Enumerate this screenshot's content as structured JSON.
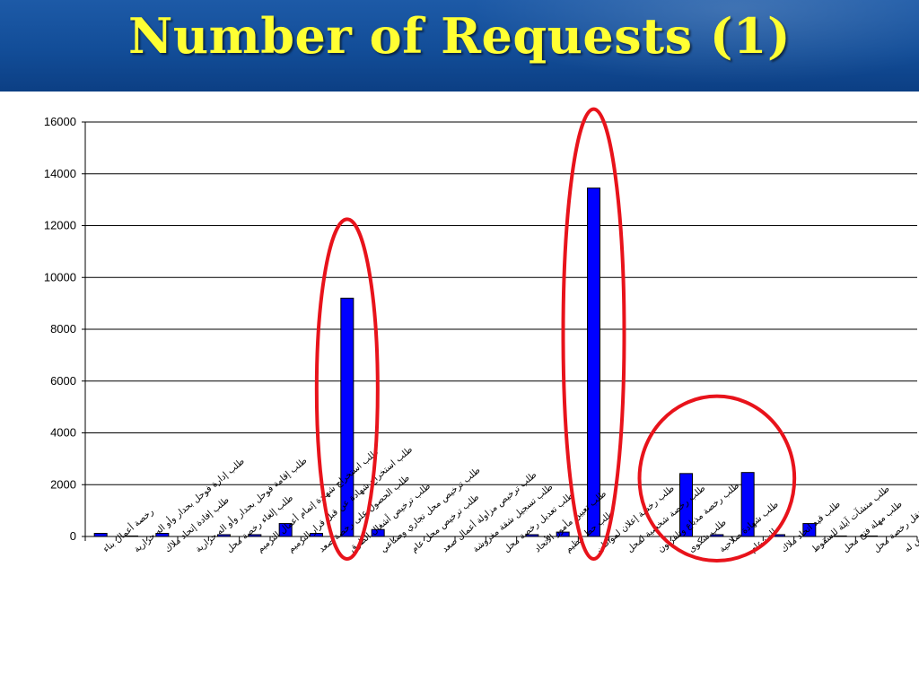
{
  "header": {
    "title": "Number of Requests (1)"
  },
  "colors": {
    "bar": "#0000ff",
    "bar_outline": "#000000",
    "highlight": "#e8131b",
    "title": "#ffff33",
    "header_bg": "#134f9c"
  },
  "chart_data": {
    "type": "bar",
    "title": "",
    "xlabel": "",
    "ylabel": "",
    "ylim": [
      0,
      16000
    ],
    "yticks": [
      0,
      2000,
      4000,
      6000,
      8000,
      10000,
      12000,
      14000,
      16000
    ],
    "grid": true,
    "legend": "none",
    "categories": [
      "رخصة أعمال بناء",
      "طلب إدارة فوحل بحدار وأو اله حرارية",
      "طلب إفادة إتحاد ملاك",
      "طلب إقامة فوحل بحدار وأو اله حرارية",
      "طلب إلغاء رخصة محل",
      "طلب استخراج شهادة إتمام أعمال الترميم",
      "طلب استخراج شهادة عن قبل قرار الترميم",
      "طلب الحصول على رخصة صعد",
      "طلب ترخيص أشغال الطرق",
      "طلب ترخيص محل تجاري وصناعي",
      "طلب ترخيص محل عام",
      "طلب ترخيص مزاولة أعمال صعد",
      "طلب تسجيل شقة مفروشة",
      "طلب تعديل رخصة محل",
      "طلب تعيين مأمور الأتحاد",
      "طلب حظ تنظيم",
      "طلب رخصة إعلان لمواطن",
      "طلب رخصة شخصية لمحل",
      "طلب رخصة مذياع وتلفزيون",
      "طلب شكوى",
      "طلب شهادة صلاحية",
      "طلب عام",
      "طلب قيد اتحاد ملاك",
      "طلب منشآت آيلة للسقوط",
      "طلب مهلة فتح محل",
      "طلب نقل رخصة محل",
      "طلب نقل رخصة محل لوفاة المرخص له"
    ],
    "values": [
      120,
      20,
      120,
      0,
      70,
      70,
      500,
      120,
      9200,
      270,
      0,
      0,
      0,
      0,
      70,
      170,
      13450,
      0,
      0,
      2430,
      70,
      2470,
      70,
      500,
      20,
      20,
      0
    ],
    "highlights": [
      {
        "category_index": 8
      },
      {
        "category_index": 16
      },
      {
        "category_index_from": 19,
        "category_index_to": 21
      }
    ]
  }
}
